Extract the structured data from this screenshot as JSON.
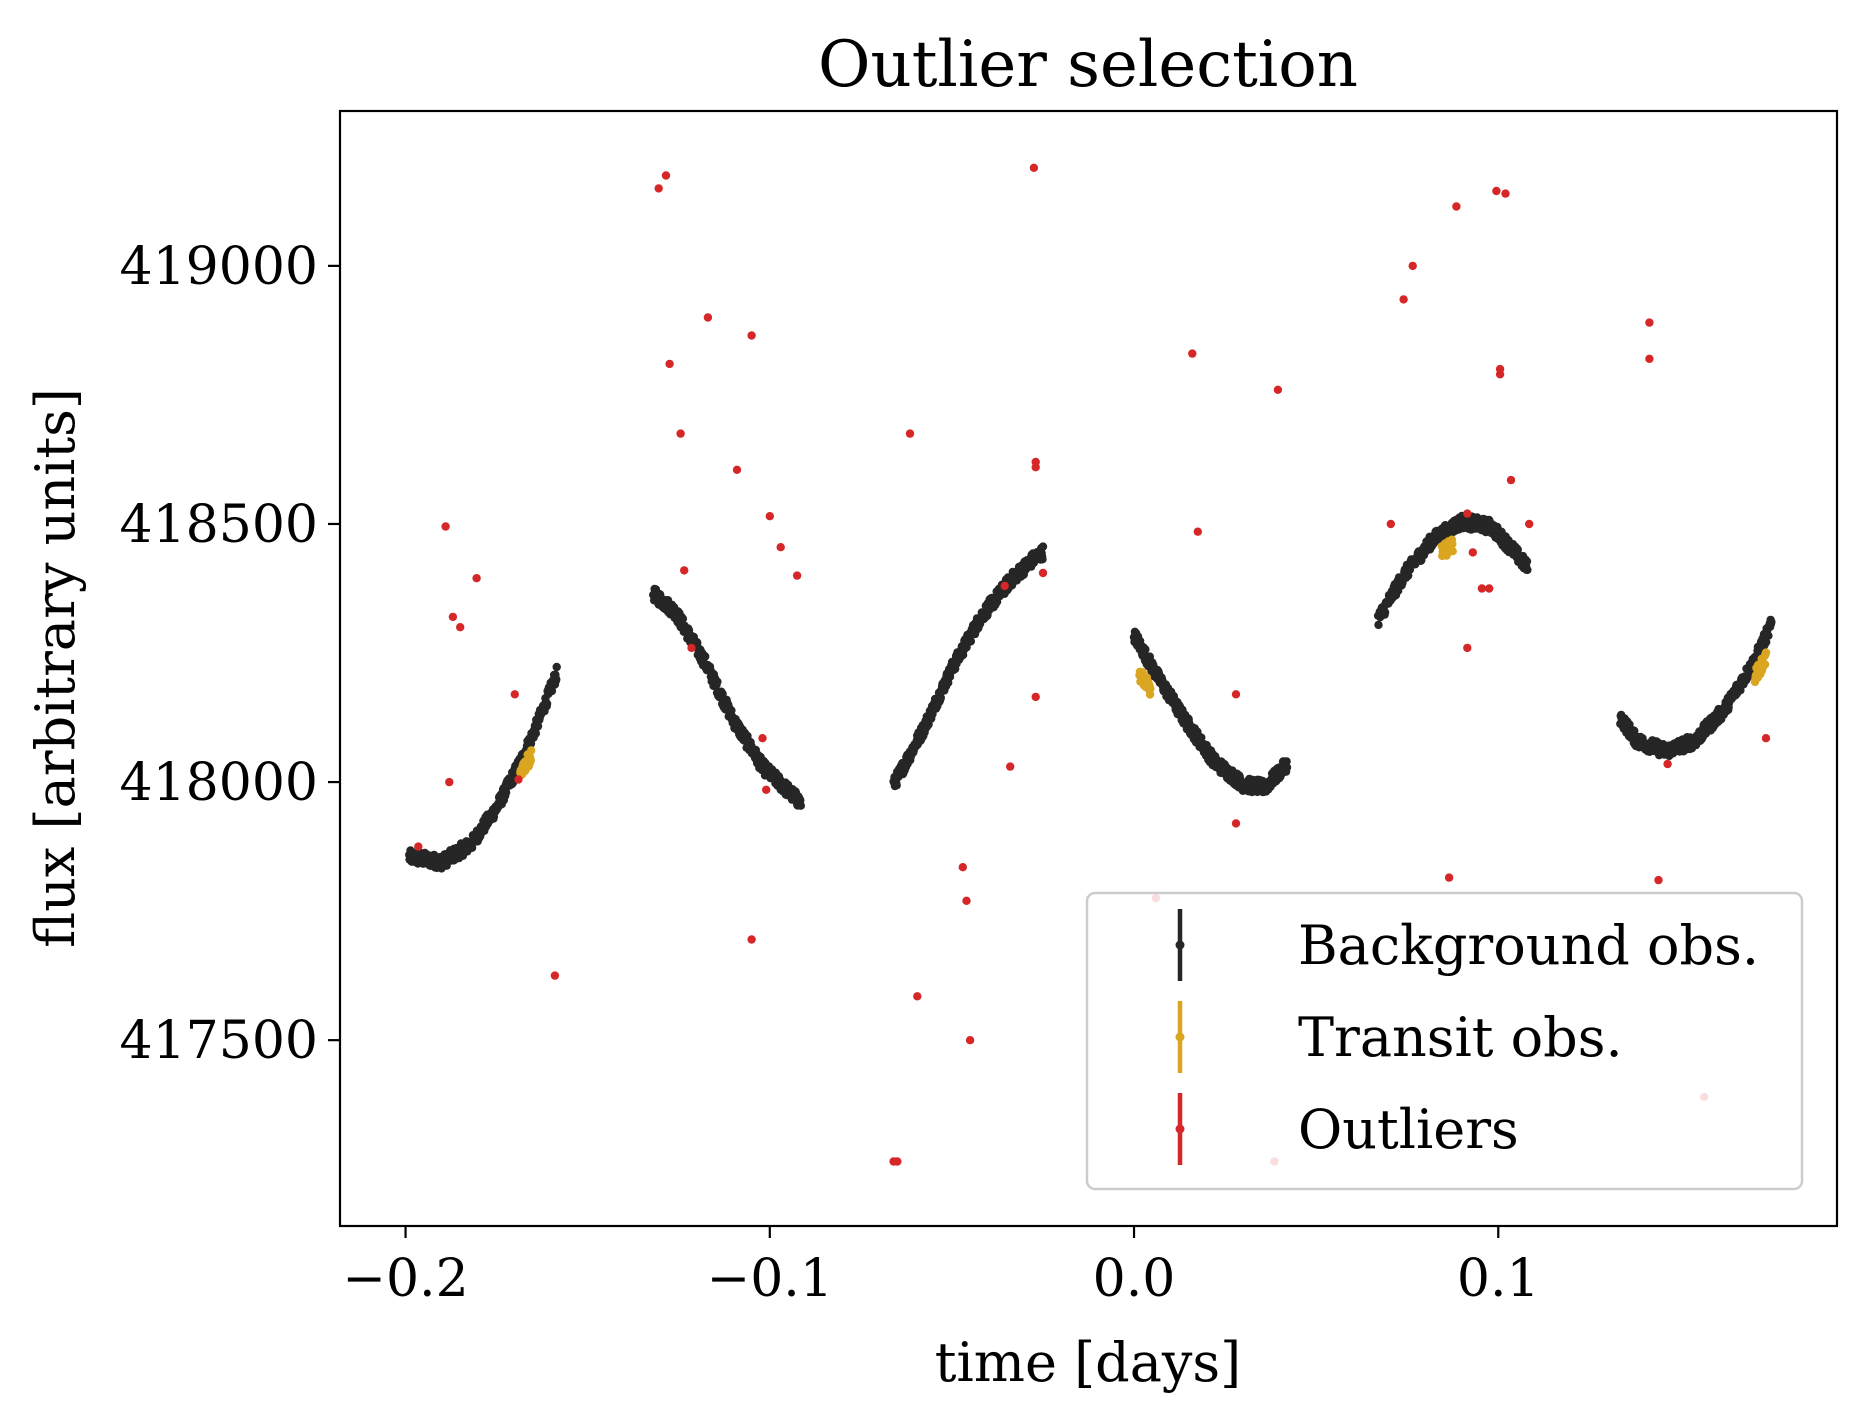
{
  "chart_data": {
    "type": "scatter",
    "title": "Outlier selection",
    "xlabel": "time [days]",
    "ylabel": "flux [arbitrary units]",
    "xlim": [
      -0.218,
      0.193
    ],
    "ylim": [
      417140,
      419300
    ],
    "xticks": [
      -0.2,
      -0.1,
      0.0,
      0.1
    ],
    "xtick_labels": [
      "−0.2",
      "−0.1",
      "0.0",
      "0.1"
    ],
    "yticks": [
      417500,
      418000,
      418500,
      419000
    ],
    "ytick_labels": [
      "417500",
      "418000",
      "418500",
      "419000"
    ],
    "grid": false,
    "legend_position": "lower-right",
    "series": [
      {
        "name": "Background obs.",
        "color": "#262626",
        "segments": [
          {
            "x0": -0.199,
            "x1": -0.1585,
            "ctrl": [
              [
                -0.199,
                417855
              ],
              [
                -0.19,
                417845
              ],
              [
                -0.182,
                417880
              ],
              [
                -0.175,
                417950
              ],
              [
                -0.168,
                418045
              ],
              [
                -0.164,
                418110
              ],
              [
                -0.1585,
                418210
              ]
            ]
          },
          {
            "x0": -0.132,
            "x1": -0.0915,
            "ctrl": [
              [
                -0.132,
                418365
              ],
              [
                -0.126,
                418330
              ],
              [
                -0.118,
                418235
              ],
              [
                -0.11,
                418120
              ],
              [
                -0.102,
                418030
              ],
              [
                -0.096,
                417990
              ],
              [
                -0.0915,
                417960
              ]
            ]
          },
          {
            "x0": -0.066,
            "x1": -0.025,
            "ctrl": [
              [
                -0.066,
                417995
              ],
              [
                -0.058,
                418100
              ],
              [
                -0.05,
                418220
              ],
              [
                -0.042,
                418320
              ],
              [
                -0.034,
                418390
              ],
              [
                -0.028,
                418430
              ],
              [
                -0.025,
                418445
              ]
            ]
          },
          {
            "x0": 0.0,
            "x1": 0.042,
            "ctrl": [
              [
                0.0,
                418285
              ],
              [
                0.006,
                418210
              ],
              [
                0.014,
                418120
              ],
              [
                0.022,
                418040
              ],
              [
                0.03,
                417995
              ],
              [
                0.036,
                417990
              ],
              [
                0.042,
                418035
              ]
            ]
          },
          {
            "x0": 0.067,
            "x1": 0.108,
            "ctrl": [
              [
                0.067,
                418315
              ],
              [
                0.074,
                418400
              ],
              [
                0.082,
                418470
              ],
              [
                0.09,
                418505
              ],
              [
                0.098,
                418495
              ],
              [
                0.104,
                418450
              ],
              [
                0.108,
                418415
              ]
            ]
          },
          {
            "x0": 0.1335,
            "x1": 0.175,
            "ctrl": [
              [
                0.1335,
                418125
              ],
              [
                0.138,
                418080
              ],
              [
                0.146,
                418060
              ],
              [
                0.154,
                418080
              ],
              [
                0.162,
                418140
              ],
              [
                0.17,
                418230
              ],
              [
                0.175,
                418305
              ]
            ]
          }
        ]
      },
      {
        "name": "Transit obs.",
        "color": "#DAA520",
        "segments": [
          {
            "x0": -0.1685,
            "x1": -0.1655,
            "ctrl": [
              [
                -0.1685,
                418020
              ],
              [
                -0.1655,
                418050
              ]
            ]
          },
          {
            "x0": 0.0015,
            "x1": 0.0045,
            "ctrl": [
              [
                0.0015,
                418210
              ],
              [
                0.0045,
                418180
              ]
            ]
          },
          {
            "x0": 0.0845,
            "x1": 0.0875,
            "ctrl": [
              [
                0.0845,
                418445
              ],
              [
                0.0875,
                418460
              ]
            ]
          },
          {
            "x0": 0.1705,
            "x1": 0.1735,
            "ctrl": [
              [
                0.1705,
                418205
              ],
              [
                0.1735,
                418240
              ]
            ]
          }
        ]
      },
      {
        "name": "Outliers",
        "color": "#D62728",
        "points": [
          [
            -0.1965,
            417875
          ],
          [
            -0.189,
            418495
          ],
          [
            -0.188,
            418000
          ],
          [
            -0.187,
            418320
          ],
          [
            -0.185,
            418300
          ],
          [
            -0.1805,
            418395
          ],
          [
            -0.17,
            418170
          ],
          [
            -0.169,
            418005
          ],
          [
            -0.159,
            417625
          ],
          [
            -0.1305,
            419150
          ],
          [
            -0.1285,
            419175
          ],
          [
            -0.1275,
            418810
          ],
          [
            -0.1245,
            418675
          ],
          [
            -0.1235,
            418410
          ],
          [
            -0.1215,
            418260
          ],
          [
            -0.117,
            418900
          ],
          [
            -0.109,
            418605
          ],
          [
            -0.105,
            418865
          ],
          [
            -0.105,
            417695
          ],
          [
            -0.102,
            418085
          ],
          [
            -0.101,
            417985
          ],
          [
            -0.1,
            418515
          ],
          [
            -0.097,
            418455
          ],
          [
            -0.0925,
            418400
          ],
          [
            -0.066,
            417265
          ],
          [
            -0.065,
            417265
          ],
          [
            -0.0615,
            418675
          ],
          [
            -0.0595,
            417585
          ],
          [
            -0.047,
            417835
          ],
          [
            -0.046,
            417770
          ],
          [
            -0.045,
            417500
          ],
          [
            -0.0355,
            418380
          ],
          [
            -0.034,
            418030
          ],
          [
            -0.0275,
            419190
          ],
          [
            -0.027,
            418620
          ],
          [
            -0.027,
            418610
          ],
          [
            -0.027,
            418165
          ],
          [
            -0.025,
            418405
          ],
          [
            0.006,
            417775
          ],
          [
            0.016,
            418830
          ],
          [
            0.0175,
            418485
          ],
          [
            0.028,
            418170
          ],
          [
            0.028,
            417920
          ],
          [
            0.0385,
            417265
          ],
          [
            0.0395,
            418760
          ],
          [
            0.0705,
            418500
          ],
          [
            0.074,
            418935
          ],
          [
            0.0765,
            419000
          ],
          [
            0.0865,
            417815
          ],
          [
            0.0885,
            419115
          ],
          [
            0.0915,
            418520
          ],
          [
            0.0915,
            418260
          ],
          [
            0.093,
            418445
          ],
          [
            0.0955,
            418375
          ],
          [
            0.0975,
            418375
          ],
          [
            0.0995,
            419145
          ],
          [
            0.1005,
            418790
          ],
          [
            0.1005,
            418800
          ],
          [
            0.102,
            419140
          ],
          [
            0.1035,
            418585
          ],
          [
            0.1085,
            418500
          ],
          [
            0.1415,
            418890
          ],
          [
            0.1415,
            418820
          ],
          [
            0.144,
            417810
          ],
          [
            0.1465,
            418035
          ],
          [
            0.1565,
            417390
          ],
          [
            0.1735,
            418085
          ]
        ]
      }
    ]
  }
}
